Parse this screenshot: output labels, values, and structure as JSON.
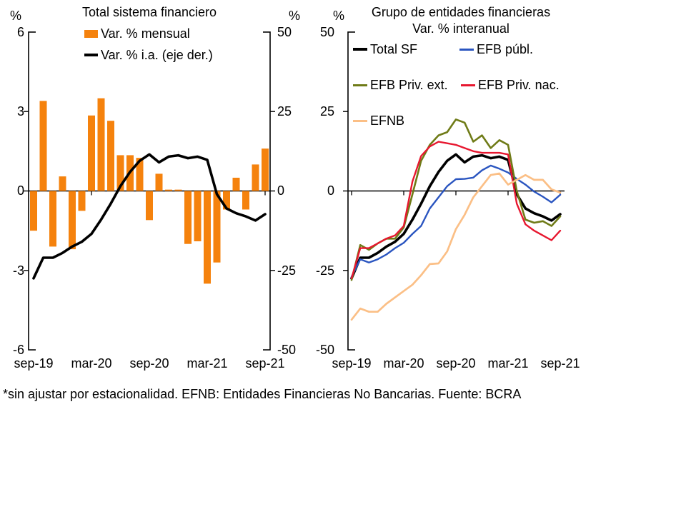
{
  "footer": "*sin ajustar por estacionalidad. EFNB: Entidades Financieras No Bancarias. Fuente: BCRA",
  "chart_data": [
    {
      "type": "bar",
      "title": "Total sistema financiero",
      "categories": [
        "sep-19",
        "oct-19",
        "nov-19",
        "dic-19",
        "ene-20",
        "feb-20",
        "mar-20",
        "abr-20",
        "may-20",
        "jun-20",
        "jul-20",
        "ago-20",
        "sep-20",
        "oct-20",
        "nov-20",
        "dic-20",
        "ene-21",
        "feb-21",
        "mar-21",
        "abr-21",
        "may-21",
        "jun-21",
        "jul-21",
        "ago-21",
        "sep-21"
      ],
      "series": [
        {
          "name": "Var. % mensual",
          "type": "bar",
          "axis": "left",
          "color": "#F5820D",
          "values": [
            -1.5,
            3.4,
            -2.1,
            0.55,
            -2.2,
            -0.75,
            2.85,
            3.5,
            2.65,
            1.35,
            1.35,
            1.25,
            -1.1,
            0.65,
            0.05,
            0.05,
            -2.0,
            -1.9,
            -3.5,
            -2.7,
            -0.7,
            0.5,
            -0.7,
            1.0,
            1.6
          ]
        },
        {
          "name": "Var. % i.a. (eje der.)",
          "type": "line",
          "axis": "right",
          "color": "#000000",
          "values": [
            -27.5,
            -21,
            -21,
            -19.5,
            -17.5,
            -16,
            -13.5,
            -9,
            -4,
            1.5,
            6,
            9.5,
            11.5,
            9,
            10.8,
            11.2,
            10.3,
            10.8,
            9.8,
            -1,
            -5.5,
            -7,
            -8,
            -9.3,
            -7.3
          ]
        }
      ],
      "left_axis": {
        "label": "%",
        "range": [
          -6,
          6
        ],
        "ticks": [
          "6",
          "3",
          "0",
          "-3",
          "-6"
        ]
      },
      "right_axis": {
        "label": "%",
        "range": [
          -50,
          50
        ],
        "ticks": [
          "50",
          "25",
          "0",
          "-25",
          "-50"
        ]
      },
      "x_tick_labels": [
        "sep-19",
        "mar-20",
        "sep-20",
        "mar-21",
        "sep-21"
      ],
      "grid": "zero-line-only",
      "legend_position": "top-center"
    },
    {
      "type": "line",
      "title": "Grupo de entidades financieras",
      "subtitle": "Var. % interanual",
      "categories": [
        "sep-19",
        "oct-19",
        "nov-19",
        "dic-19",
        "ene-20",
        "feb-20",
        "mar-20",
        "abr-20",
        "may-20",
        "jun-20",
        "jul-20",
        "ago-20",
        "sep-20",
        "oct-20",
        "nov-20",
        "dic-20",
        "ene-21",
        "feb-21",
        "mar-21",
        "abr-21",
        "may-21",
        "jun-21",
        "jul-21",
        "ago-21",
        "sep-21"
      ],
      "series": [
        {
          "name": "Total SF",
          "color": "#000000",
          "values": [
            -27.5,
            -21,
            -21,
            -19.5,
            -17.5,
            -16,
            -13.5,
            -9,
            -4,
            1.5,
            6,
            9.5,
            11.5,
            9,
            10.8,
            11.2,
            10.3,
            10.8,
            9.8,
            -1,
            -5.5,
            -7,
            -8,
            -9.3,
            -7.3
          ]
        },
        {
          "name": "EFB públ.",
          "color": "#2A55C0",
          "values": [
            -27,
            -21.5,
            -22.5,
            -21.5,
            -20,
            -18,
            -16.3,
            -13.5,
            -11,
            -5.5,
            -2,
            1.5,
            3.7,
            3.8,
            4.2,
            6.5,
            8,
            7,
            5.8,
            3.8,
            2,
            -0.2,
            -1.8,
            -3.6,
            -1.2
          ]
        },
        {
          "name": "EFB Priv. ext.",
          "color": "#6F7B17",
          "values": [
            -28,
            -17,
            -18.5,
            -16.5,
            -15,
            -15,
            -11.5,
            -1,
            9.5,
            14.5,
            17.5,
            18.5,
            22.5,
            21.5,
            15.5,
            17.5,
            13.5,
            16,
            14.5,
            0,
            -9,
            -10,
            -9.5,
            -11,
            -8
          ]
        },
        {
          "name": "EFB Priv. nac.",
          "color": "#E7172F",
          "values": [
            -27.5,
            -18,
            -18,
            -16.5,
            -15,
            -14,
            -11,
            3,
            11,
            14,
            15.5,
            15,
            14.5,
            13.5,
            12.5,
            12,
            12,
            12,
            11.5,
            -4,
            -10.5,
            -12.5,
            -14,
            -15.5,
            -12.5
          ]
        },
        {
          "name": "EFNB",
          "color": "#FBBF86",
          "values": [
            -40.5,
            -37,
            -38,
            -38,
            -35.5,
            -33.5,
            -31.5,
            -29.5,
            -26.5,
            -23,
            -22.8,
            -19,
            -12,
            -7.5,
            -2,
            1.5,
            5,
            5.5,
            2,
            3.5,
            5,
            3.5,
            3.5,
            0.5,
            -0.5
          ]
        }
      ],
      "y_axis": {
        "label": "%",
        "range": [
          -50,
          50
        ],
        "ticks": [
          "50",
          "25",
          "0",
          "-25",
          "-50"
        ]
      },
      "x_tick_labels": [
        "sep-19",
        "mar-20",
        "sep-20",
        "mar-21",
        "sep-21"
      ],
      "grid": "zero-line-only",
      "legend_position": "top-left-inside"
    }
  ]
}
